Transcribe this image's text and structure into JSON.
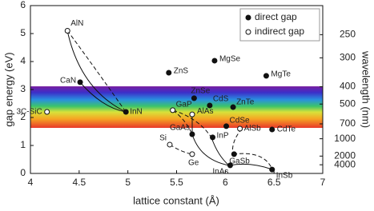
{
  "chart_data": {
    "type": "scatter",
    "xlabel": "lattice constant (Å)",
    "ylabel": "gap energy (eV)",
    "y2label": "wavelength (nm)",
    "xlim": [
      4,
      7
    ],
    "xticks": [
      4,
      4.5,
      5,
      5.5,
      6,
      6.5,
      7
    ],
    "ylim": [
      0,
      6
    ],
    "yticks": [
      0,
      1,
      2,
      3,
      4,
      5,
      6
    ],
    "y2_scale": "reciprocal",
    "y2_factor": 1240,
    "y2ticks": [
      250,
      300,
      400,
      500,
      700,
      1000,
      2000,
      4000
    ],
    "legend_position": "upper right",
    "series": [
      {
        "name": "direct gap",
        "marker": "filled",
        "color": "#111111",
        "labels": [
          "CaN",
          "InN",
          "ZnS",
          "MgSe",
          "MgTe",
          "ZnSe",
          "CdS",
          "ZnTe",
          "CdSe",
          "CdTe",
          "GaAs",
          "InP",
          "GaSb",
          "InAs",
          "InSb"
        ],
        "x": [
          4.51,
          4.98,
          5.42,
          5.89,
          6.42,
          5.68,
          5.84,
          6.08,
          6.01,
          6.48,
          5.66,
          5.87,
          6.09,
          6.05,
          6.48
        ],
        "values": [
          3.26,
          2.2,
          3.6,
          4.03,
          3.49,
          2.69,
          2.43,
          2.37,
          1.69,
          1.57,
          1.4,
          1.29,
          0.69,
          0.29,
          0.14
        ]
      },
      {
        "name": "indirect gap",
        "marker": "open",
        "color": "#111111",
        "labels": [
          "AlN",
          "3C-SiC",
          "GaP",
          "AlAs",
          "AlSb",
          "Si",
          "Ge"
        ],
        "x": [
          4.38,
          4.17,
          5.46,
          5.66,
          6.15,
          5.43,
          5.66
        ],
        "values": [
          5.1,
          2.2,
          2.26,
          2.11,
          1.6,
          1.03,
          0.69
        ]
      }
    ]
  }
}
